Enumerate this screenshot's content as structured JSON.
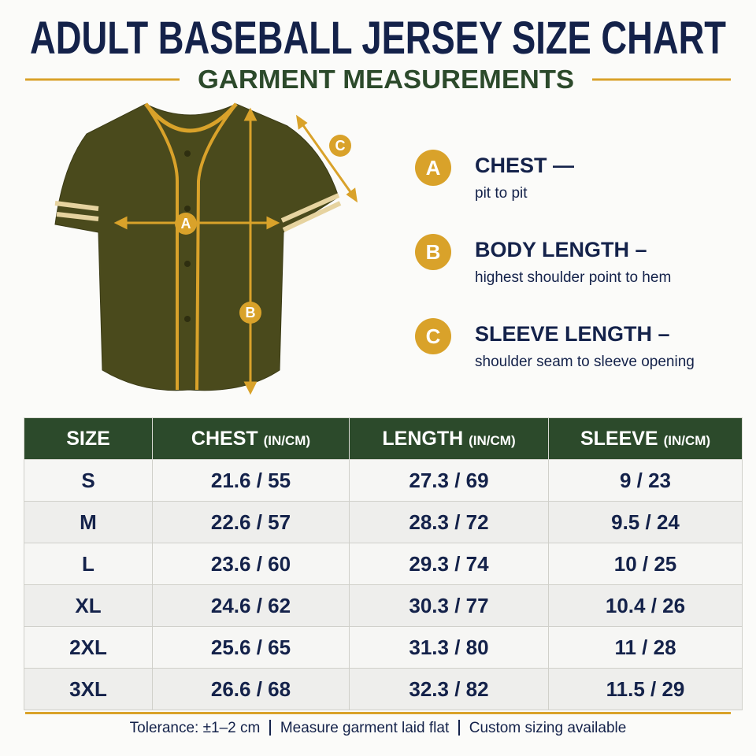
{
  "header": {
    "title": "ADULT BASEBALL JERSEY SIZE CHART",
    "subtitle": "GARMENT MEASUREMENTS"
  },
  "diagram": {
    "labels": [
      "A",
      "B",
      "C"
    ]
  },
  "legend": [
    {
      "letter": "A",
      "title": "CHEST —",
      "description": "pit to pit"
    },
    {
      "letter": "B",
      "title": "BODY LENGTH –",
      "description": "highest shoulder point to hem"
    },
    {
      "letter": "C",
      "title": "SLEEVE LENGTH –",
      "description": "shoulder seam to sleeve opening"
    }
  ],
  "table": {
    "columns": [
      {
        "label": "SIZE"
      },
      {
        "label": "CHEST",
        "unit": "(IN/CM)"
      },
      {
        "label": "LENGTH",
        "unit": "(IN/CM)"
      },
      {
        "label": "SLEEVE",
        "unit": "(IN/CM)"
      }
    ],
    "rows": [
      [
        "S",
        "21.6 / 55",
        "27.3 / 69",
        "9 / 23"
      ],
      [
        "M",
        "22.6 / 57",
        "28.3 / 72",
        "9.5 / 24"
      ],
      [
        "L",
        "23.6 / 60",
        "29.3 / 74",
        "10 / 25"
      ],
      [
        "XL",
        "24.6 / 62",
        "30.3 / 77",
        "10.4 / 26"
      ],
      [
        "2XL",
        "25.6 / 65",
        "31.3 / 80",
        "11 / 28"
      ],
      [
        "3XL",
        "26.6 / 68",
        "32.3 / 82",
        "11.5 / 29"
      ]
    ]
  },
  "footer": {
    "notes": [
      "Tolerance: ±1–2 cm",
      "Measure garment laid flat",
      "Custom sizing available"
    ]
  }
}
